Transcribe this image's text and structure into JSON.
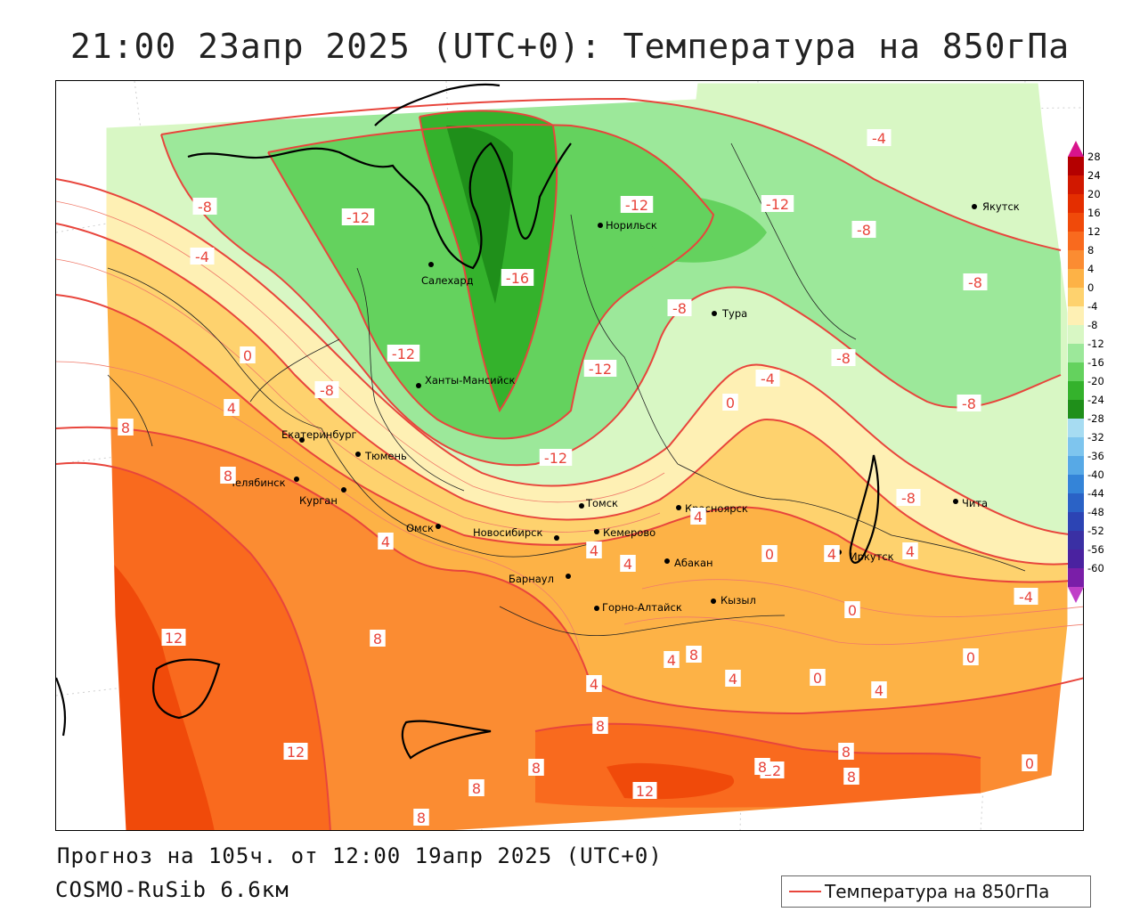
{
  "header": {
    "title": "21:00 23апр 2025 (UTC+0): Температура на 850гПа"
  },
  "footer": {
    "forecast": "Прогноз на 105ч. от 12:00 19апр 2025 (UTC+0)",
    "model": "COSMO-RuSib 6.6км"
  },
  "legend": {
    "label": "Температура на 850гПа",
    "line_color": "#e8453c"
  },
  "colorbar": {
    "levels": [
      28,
      24,
      20,
      16,
      12,
      8,
      4,
      0,
      -4,
      -8,
      -12,
      -16,
      -20,
      -24,
      -28,
      -32,
      -36,
      -40,
      -44,
      -48,
      -52,
      -56,
      -60
    ],
    "colors": [
      "#b40000",
      "#d11800",
      "#e42e00",
      "#f04a0a",
      "#f96a1e",
      "#fb8c32",
      "#fdb246",
      "#fed26e",
      "#fef0b4",
      "#d8f7c4",
      "#9ce89a",
      "#64d25e",
      "#34b22c",
      "#1f8f1a",
      "#a7dcf2",
      "#7ec5ee",
      "#57a9e6",
      "#3484d8",
      "#2a62c6",
      "#2c44b4",
      "#3a30a4",
      "#4a22a0",
      "#7a1ea8"
    ],
    "top_cap_color": "#d8148c",
    "bottom_cap_color": "#c040c8"
  },
  "cities": [
    {
      "name": "Салехард"
    },
    {
      "name": "Норильск"
    },
    {
      "name": "Якутск"
    },
    {
      "name": "Тура"
    },
    {
      "name": "Ханты-Мансийск"
    },
    {
      "name": "Екатеринбург"
    },
    {
      "name": "Тюмень"
    },
    {
      "name": "Челябинск"
    },
    {
      "name": "Курган"
    },
    {
      "name": "Омск"
    },
    {
      "name": "Новосибирск"
    },
    {
      "name": "Томск"
    },
    {
      "name": "Кемерово"
    },
    {
      "name": "Красноярск"
    },
    {
      "name": "Абакан"
    },
    {
      "name": "Барнаул"
    },
    {
      "name": "Горно-Алтайск"
    },
    {
      "name": "Кызыл"
    },
    {
      "name": "Иркутск"
    },
    {
      "name": "Чита"
    }
  ],
  "isotherm_labels": [
    {
      "text": "-8"
    },
    {
      "text": "-12"
    },
    {
      "text": "-4"
    },
    {
      "text": "-16"
    },
    {
      "text": "-12"
    },
    {
      "text": "-12"
    },
    {
      "text": "-4"
    },
    {
      "text": "-8"
    },
    {
      "text": "-8"
    },
    {
      "text": "-8"
    },
    {
      "text": "-12"
    },
    {
      "text": "-8"
    },
    {
      "text": "-12"
    },
    {
      "text": "-8"
    },
    {
      "text": "0"
    },
    {
      "text": "-4"
    },
    {
      "text": "0"
    },
    {
      "text": "4"
    },
    {
      "text": "8"
    },
    {
      "text": "8"
    },
    {
      "text": "-12"
    },
    {
      "text": "-8"
    },
    {
      "text": "-8"
    },
    {
      "text": "4"
    },
    {
      "text": "4"
    },
    {
      "text": "4"
    },
    {
      "text": "4"
    },
    {
      "text": "4"
    },
    {
      "text": "0"
    },
    {
      "text": "0"
    },
    {
      "text": "-4"
    },
    {
      "text": "12"
    },
    {
      "text": "8"
    },
    {
      "text": "4"
    },
    {
      "text": "8"
    },
    {
      "text": "0"
    },
    {
      "text": "4"
    },
    {
      "text": "0"
    },
    {
      "text": "4"
    },
    {
      "text": "8"
    },
    {
      "text": "8"
    },
    {
      "text": "12"
    },
    {
      "text": "8"
    },
    {
      "text": "12"
    },
    {
      "text": "8"
    },
    {
      "text": "8"
    },
    {
      "text": "12"
    },
    {
      "text": "8"
    },
    {
      "text": "0"
    },
    {
      "text": "4"
    },
    {
      "text": "4"
    },
    {
      "text": "8"
    }
  ]
}
